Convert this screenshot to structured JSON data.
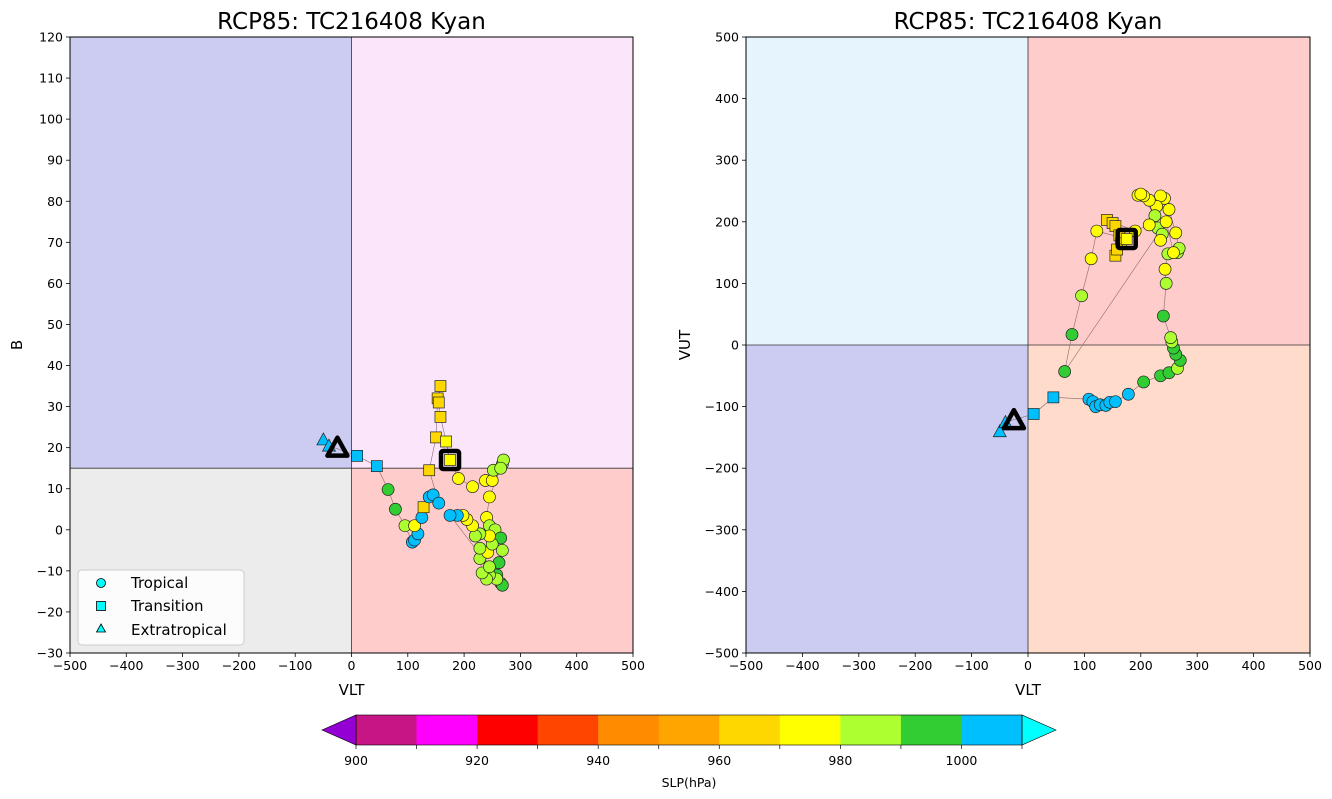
{
  "chart_data": [
    {
      "type": "scatter",
      "title": "RCP85: TC216408 Kyan",
      "xlabel": "VLT",
      "ylabel": "B",
      "xlim": [
        -500,
        500
      ],
      "ylim": [
        -30,
        120
      ],
      "xticks": [
        -500,
        -400,
        -300,
        -200,
        -100,
        0,
        100,
        200,
        300,
        400,
        500
      ],
      "yticks": [
        -30,
        -20,
        -10,
        0,
        10,
        20,
        30,
        40,
        50,
        60,
        70,
        80,
        90,
        100,
        110,
        120
      ],
      "x_divider": 0,
      "y_divider": 15,
      "quadrant_colors": {
        "upper_left": "#ccccf2",
        "upper_right": "#fbe5fa",
        "lower_left": "#ececec",
        "lower_right": "#ffcccc"
      },
      "legend_position": "lower-left",
      "legend": [
        "Tropical",
        "Transition",
        "Extratropical"
      ],
      "start_marker": {
        "x": -25,
        "y": 20,
        "shape": "triangle"
      },
      "end_marker": {
        "x": 175,
        "y": 17,
        "shape": "square"
      },
      "points": [
        {
          "x": -50,
          "y": 22,
          "slp": 1005,
          "m": "tri"
        },
        {
          "x": -40,
          "y": 20.5,
          "slp": 1005,
          "m": "tri"
        },
        {
          "x": 10,
          "y": 18,
          "slp": 1002,
          "m": "sq"
        },
        {
          "x": 45,
          "y": 15.5,
          "slp": 1002,
          "m": "sq"
        },
        {
          "x": 65,
          "y": 9.8,
          "slp": 992,
          "m": "circ"
        },
        {
          "x": 78,
          "y": 5,
          "slp": 992,
          "m": "circ"
        },
        {
          "x": 95,
          "y": 1,
          "slp": 982,
          "m": "circ"
        },
        {
          "x": 108,
          "y": -3,
          "slp": 1002,
          "m": "circ"
        },
        {
          "x": 112,
          "y": -2.5,
          "slp": 1002,
          "m": "circ"
        },
        {
          "x": 118,
          "y": -1,
          "slp": 1002,
          "m": "circ"
        },
        {
          "x": 112,
          "y": 1,
          "slp": 975,
          "m": "circ"
        },
        {
          "x": 125,
          "y": 3,
          "slp": 1002,
          "m": "circ"
        },
        {
          "x": 128,
          "y": 5.5,
          "slp": 965,
          "m": "sq"
        },
        {
          "x": 138,
          "y": 8,
          "slp": 1002,
          "m": "circ"
        },
        {
          "x": 145,
          "y": 8.5,
          "slp": 1002,
          "m": "circ"
        },
        {
          "x": 155,
          "y": 6.5,
          "slp": 1002,
          "m": "circ"
        },
        {
          "x": 138,
          "y": 14.5,
          "slp": 965,
          "m": "sq"
        },
        {
          "x": 150,
          "y": 22.5,
          "slp": 965,
          "m": "sq"
        },
        {
          "x": 153,
          "y": 32,
          "slp": 965,
          "m": "sq"
        },
        {
          "x": 158,
          "y": 35,
          "slp": 965,
          "m": "sq"
        },
        {
          "x": 155,
          "y": 31,
          "slp": 965,
          "m": "sq"
        },
        {
          "x": 158,
          "y": 27.5,
          "slp": 965,
          "m": "sq"
        },
        {
          "x": 168,
          "y": 21.5,
          "slp": 975,
          "m": "sq"
        },
        {
          "x": 175,
          "y": 17,
          "slp": 975,
          "m": "sq"
        },
        {
          "x": 190,
          "y": 12.5,
          "slp": 975,
          "m": "circ"
        },
        {
          "x": 215,
          "y": 10.5,
          "slp": 975,
          "m": "circ"
        },
        {
          "x": 238,
          "y": 12,
          "slp": 975,
          "m": "circ"
        },
        {
          "x": 250,
          "y": 12,
          "slp": 975,
          "m": "circ"
        },
        {
          "x": 252,
          "y": 14.5,
          "slp": 985,
          "m": "circ"
        },
        {
          "x": 268,
          "y": 16,
          "slp": 985,
          "m": "circ"
        },
        {
          "x": 270,
          "y": 17,
          "slp": 985,
          "m": "circ"
        },
        {
          "x": 265,
          "y": 15,
          "slp": 985,
          "m": "circ"
        },
        {
          "x": 245,
          "y": 8,
          "slp": 975,
          "m": "circ"
        },
        {
          "x": 240,
          "y": 3,
          "slp": 975,
          "m": "circ"
        },
        {
          "x": 245,
          "y": 1,
          "slp": 985,
          "m": "circ"
        },
        {
          "x": 255,
          "y": 0,
          "slp": 985,
          "m": "circ"
        },
        {
          "x": 265,
          "y": -2,
          "slp": 995,
          "m": "circ"
        },
        {
          "x": 268,
          "y": -5,
          "slp": 985,
          "m": "circ"
        },
        {
          "x": 262,
          "y": -8,
          "slp": 995,
          "m": "circ"
        },
        {
          "x": 258,
          "y": -11,
          "slp": 995,
          "m": "circ"
        },
        {
          "x": 265,
          "y": -13,
          "slp": 995,
          "m": "circ"
        },
        {
          "x": 268,
          "y": -13.5,
          "slp": 995,
          "m": "circ"
        },
        {
          "x": 258,
          "y": -12,
          "slp": 985,
          "m": "circ"
        },
        {
          "x": 245,
          "y": -11,
          "slp": 985,
          "m": "circ"
        },
        {
          "x": 240,
          "y": -12,
          "slp": 985,
          "m": "circ"
        },
        {
          "x": 232,
          "y": -10.5,
          "slp": 985,
          "m": "circ"
        },
        {
          "x": 228,
          "y": -7,
          "slp": 985,
          "m": "circ"
        },
        {
          "x": 242,
          "y": -5.5,
          "slp": 975,
          "m": "circ"
        },
        {
          "x": 250,
          "y": -3.5,
          "slp": 985,
          "m": "circ"
        },
        {
          "x": 245,
          "y": -1.5,
          "slp": 975,
          "m": "circ"
        },
        {
          "x": 228,
          "y": -1,
          "slp": 985,
          "m": "circ"
        },
        {
          "x": 220,
          "y": -1.5,
          "slp": 985,
          "m": "circ"
        },
        {
          "x": 215,
          "y": 1,
          "slp": 975,
          "m": "circ"
        },
        {
          "x": 205,
          "y": 2.5,
          "slp": 975,
          "m": "circ"
        },
        {
          "x": 198,
          "y": 3.5,
          "slp": 975,
          "m": "circ"
        },
        {
          "x": 188,
          "y": 3.5,
          "slp": 1002,
          "m": "circ"
        },
        {
          "x": 175,
          "y": 3.5,
          "slp": 1002,
          "m": "circ"
        },
        {
          "x": 245,
          "y": -9,
          "slp": 985,
          "m": "circ"
        },
        {
          "x": 228,
          "y": -4.5,
          "slp": 985,
          "m": "circ"
        }
      ]
    },
    {
      "type": "scatter",
      "title": "RCP85: TC216408 Kyan",
      "xlabel": "VLT",
      "ylabel": "VUT",
      "xlim": [
        -500,
        500
      ],
      "ylim": [
        -500,
        500
      ],
      "xticks": [
        -500,
        -400,
        -300,
        -200,
        -100,
        0,
        100,
        200,
        300,
        400,
        500
      ],
      "yticks": [
        -500,
        -400,
        -300,
        -200,
        -100,
        0,
        100,
        200,
        300,
        400,
        500
      ],
      "x_divider": 0,
      "y_divider": 0,
      "quadrant_colors": {
        "upper_left": "#e5f4fd",
        "upper_right": "#ffcccc",
        "lower_left": "#ccccf2",
        "lower_right": "#ffdbcc"
      },
      "start_marker": {
        "x": -25,
        "y": -122,
        "shape": "triangle"
      },
      "end_marker": {
        "x": 175,
        "y": 172,
        "shape": "square"
      },
      "points": [
        {
          "x": -50,
          "y": -140,
          "slp": 1005,
          "m": "tri"
        },
        {
          "x": -40,
          "y": -125,
          "slp": 1005,
          "m": "tri"
        },
        {
          "x": 10,
          "y": -112,
          "slp": 1002,
          "m": "sq"
        },
        {
          "x": 45,
          "y": -85,
          "slp": 1002,
          "m": "sq"
        },
        {
          "x": 108,
          "y": -88,
          "slp": 1002,
          "m": "circ"
        },
        {
          "x": 115,
          "y": -92,
          "slp": 1002,
          "m": "circ"
        },
        {
          "x": 120,
          "y": -100,
          "slp": 1002,
          "m": "circ"
        },
        {
          "x": 128,
          "y": -97,
          "slp": 1002,
          "m": "circ"
        },
        {
          "x": 138,
          "y": -98,
          "slp": 1002,
          "m": "circ"
        },
        {
          "x": 145,
          "y": -93,
          "slp": 1002,
          "m": "circ"
        },
        {
          "x": 155,
          "y": -92,
          "slp": 1002,
          "m": "circ"
        },
        {
          "x": 178,
          "y": -80,
          "slp": 1002,
          "m": "circ"
        },
        {
          "x": 205,
          "y": -60,
          "slp": 992,
          "m": "circ"
        },
        {
          "x": 235,
          "y": -50,
          "slp": 992,
          "m": "circ"
        },
        {
          "x": 250,
          "y": -45,
          "slp": 992,
          "m": "circ"
        },
        {
          "x": 265,
          "y": -38,
          "slp": 985,
          "m": "circ"
        },
        {
          "x": 270,
          "y": -25,
          "slp": 992,
          "m": "circ"
        },
        {
          "x": 262,
          "y": -15,
          "slp": 992,
          "m": "circ"
        },
        {
          "x": 258,
          "y": -5,
          "slp": 992,
          "m": "circ"
        },
        {
          "x": 255,
          "y": 5,
          "slp": 985,
          "m": "circ"
        },
        {
          "x": 253,
          "y": 12,
          "slp": 985,
          "m": "circ"
        },
        {
          "x": 240,
          "y": 47,
          "slp": 992,
          "m": "circ"
        },
        {
          "x": 245,
          "y": 100,
          "slp": 985,
          "m": "circ"
        },
        {
          "x": 243,
          "y": 123,
          "slp": 975,
          "m": "circ"
        },
        {
          "x": 248,
          "y": 148,
          "slp": 985,
          "m": "circ"
        },
        {
          "x": 265,
          "y": 150,
          "slp": 985,
          "m": "circ"
        },
        {
          "x": 268,
          "y": 157,
          "slp": 985,
          "m": "circ"
        },
        {
          "x": 262,
          "y": 182,
          "slp": 975,
          "m": "circ"
        },
        {
          "x": 250,
          "y": 220,
          "slp": 975,
          "m": "circ"
        },
        {
          "x": 242,
          "y": 238,
          "slp": 975,
          "m": "circ"
        },
        {
          "x": 235,
          "y": 242,
          "slp": 975,
          "m": "circ"
        },
        {
          "x": 228,
          "y": 225,
          "slp": 975,
          "m": "circ"
        },
        {
          "x": 215,
          "y": 235,
          "slp": 975,
          "m": "circ"
        },
        {
          "x": 205,
          "y": 242,
          "slp": 975,
          "m": "circ"
        },
        {
          "x": 195,
          "y": 243,
          "slp": 975,
          "m": "circ"
        },
        {
          "x": 200,
          "y": 245,
          "slp": 975,
          "m": "circ"
        },
        {
          "x": 225,
          "y": 210,
          "slp": 985,
          "m": "circ"
        },
        {
          "x": 230,
          "y": 190,
          "slp": 985,
          "m": "circ"
        },
        {
          "x": 238,
          "y": 180,
          "slp": 985,
          "m": "circ"
        },
        {
          "x": 235,
          "y": 170,
          "slp": 975,
          "m": "circ"
        },
        {
          "x": 215,
          "y": 195,
          "slp": 975,
          "m": "circ"
        },
        {
          "x": 190,
          "y": 185,
          "slp": 975,
          "m": "circ"
        },
        {
          "x": 140,
          "y": 203,
          "slp": 965,
          "m": "sq"
        },
        {
          "x": 150,
          "y": 198,
          "slp": 965,
          "m": "sq"
        },
        {
          "x": 155,
          "y": 193,
          "slp": 965,
          "m": "sq"
        },
        {
          "x": 162,
          "y": 178,
          "slp": 965,
          "m": "sq"
        },
        {
          "x": 165,
          "y": 165,
          "slp": 965,
          "m": "sq"
        },
        {
          "x": 155,
          "y": 145,
          "slp": 965,
          "m": "sq"
        },
        {
          "x": 158,
          "y": 155,
          "slp": 965,
          "m": "sq"
        },
        {
          "x": 175,
          "y": 172,
          "slp": 975,
          "m": "sq"
        },
        {
          "x": 122,
          "y": 185,
          "slp": 975,
          "m": "circ"
        },
        {
          "x": 112,
          "y": 140,
          "slp": 975,
          "m": "circ"
        },
        {
          "x": 95,
          "y": 80,
          "slp": 985,
          "m": "circ"
        },
        {
          "x": 78,
          "y": 17,
          "slp": 992,
          "m": "circ"
        },
        {
          "x": 65,
          "y": -43,
          "slp": 992,
          "m": "circ"
        },
        {
          "x": 245,
          "y": 200,
          "slp": 975,
          "m": "circ"
        },
        {
          "x": 258,
          "y": 150,
          "slp": 975,
          "m": "circ"
        }
      ]
    }
  ],
  "legend": {
    "items": [
      {
        "label": "Tropical",
        "marker": "circle"
      },
      {
        "label": "Transition",
        "marker": "square"
      },
      {
        "label": "Extratropical",
        "marker": "triangle"
      }
    ]
  },
  "colorbar": {
    "label": "SLP(hPa)",
    "ticks": [
      "900",
      "920",
      "940",
      "960",
      "980",
      "1000"
    ],
    "colors": [
      "#c71585",
      "#ff00ff",
      "#ff0000",
      "#ff4500",
      "#ff8c00",
      "#ffa500",
      "#ffd700",
      "#ffff00",
      "#adff2f",
      "#32cd32",
      "#00bfff"
    ],
    "under_color": "#9400d3",
    "over_color": "#00ffff",
    "min": 900,
    "max": 1010,
    "step": 10
  }
}
